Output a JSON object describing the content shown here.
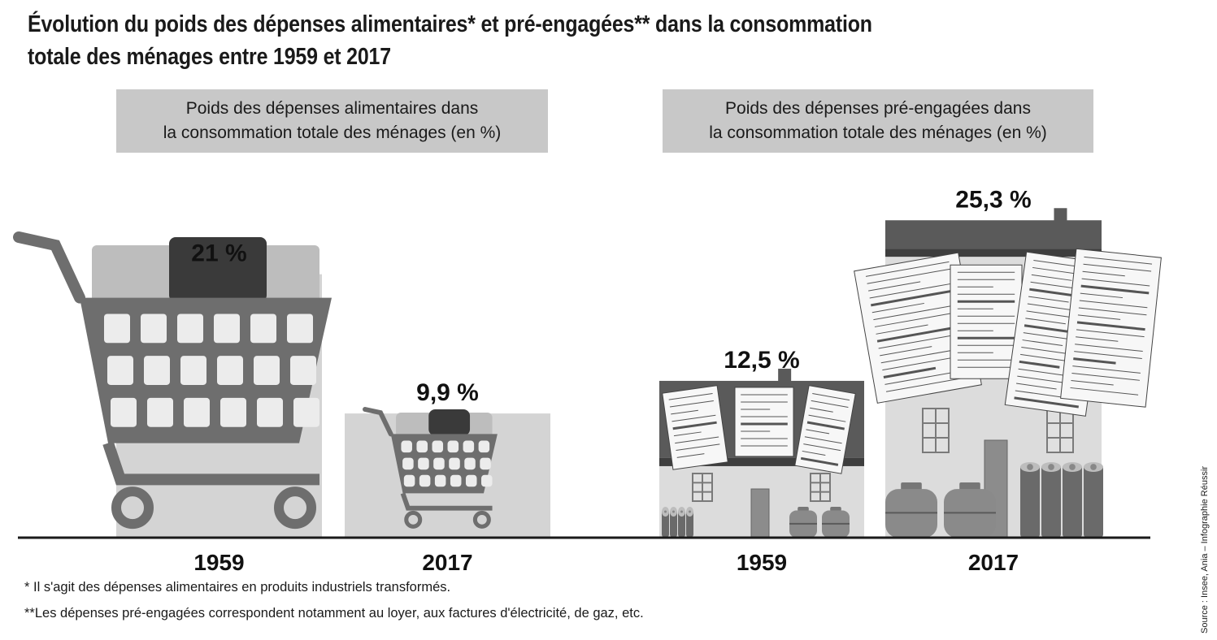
{
  "title_line1": "Évolution du poids des dépenses alimentaires* et  pré-engagées** dans la consommation",
  "title_line2": "totale des ménages entre 1959 et 2017",
  "panels": [
    {
      "header_line1": "Poids des dépenses alimentaires dans",
      "header_line2": "la consommation totale des ménages (en %)"
    },
    {
      "header_line1": "Poids des dépenses pré-engagées dans",
      "header_line2": "la consommation totale des ménages (en %)"
    }
  ],
  "footnote1": "* Il s'agit des dépenses alimentaires en produits industriels transformés.",
  "footnote2": "**Les dépenses pré-engagées correspondent notamment au loyer, aux factures d'électricité, de gaz, etc.",
  "source": "Source : Insee, Ania – Infographie Réussir",
  "colors": {
    "panel_header": "#c8c8c8",
    "bar": "#d4d4d4",
    "cart": "#6e6e6e",
    "house_wall": "#dcdcdc",
    "roof": "#5a5a5a",
    "axis": "#1a1a1a"
  },
  "icons": [
    "shopping-cart-icon",
    "house-icon",
    "invoice-documents-icon",
    "gas-bottle-icon",
    "battery-icon"
  ],
  "chart_data": [
    {
      "type": "bar",
      "categories": [
        "1959",
        "2017"
      ],
      "values": [
        21,
        9.9
      ],
      "value_labels": [
        "21 %",
        "9,9 %"
      ],
      "ylim": [
        0,
        27
      ]
    },
    {
      "type": "bar",
      "categories": [
        "1959",
        "2017"
      ],
      "values": [
        12.5,
        25.3
      ],
      "value_labels": [
        "12,5 %",
        "25,3 %"
      ],
      "ylim": [
        0,
        27
      ]
    }
  ]
}
